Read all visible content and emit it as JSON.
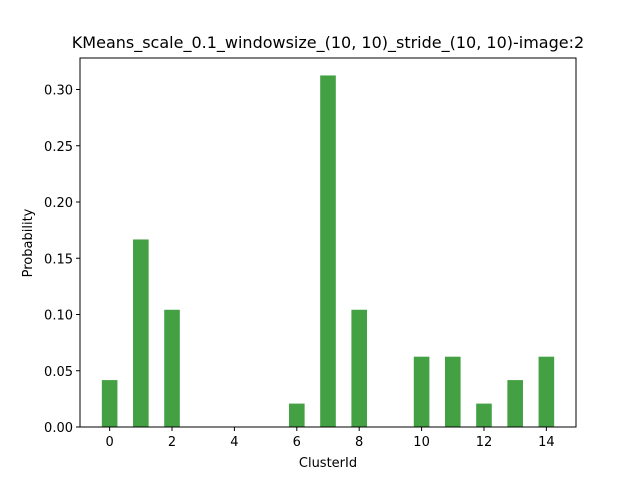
{
  "chart_data": {
    "type": "bar",
    "title": "KMeans_scale_0.1_windowsize_(10, 10)_stride_(10, 10)-image:2",
    "xlabel": "ClusterId",
    "ylabel": "Probability",
    "x": [
      0,
      1,
      2,
      3,
      4,
      5,
      6,
      7,
      8,
      9,
      10,
      11,
      12,
      13,
      14
    ],
    "values": [
      0.0417,
      0.1667,
      0.1042,
      0,
      0,
      0,
      0.0208,
      0.3125,
      0.1042,
      0,
      0.0625,
      0.0625,
      0.0208,
      0.0417,
      0.0625
    ],
    "xticks": [
      0,
      2,
      4,
      6,
      8,
      10,
      12,
      14
    ],
    "yticks": [
      0.0,
      0.05,
      0.1,
      0.15,
      0.2,
      0.25,
      0.3
    ],
    "ytick_labels": [
      "0.00",
      "0.05",
      "0.10",
      "0.15",
      "0.20",
      "0.25",
      "0.30"
    ],
    "xlim": [
      -0.95,
      14.95
    ],
    "ylim": [
      0,
      0.328
    ],
    "bar_color": "#43a043",
    "grid": false,
    "legend": "none"
  }
}
